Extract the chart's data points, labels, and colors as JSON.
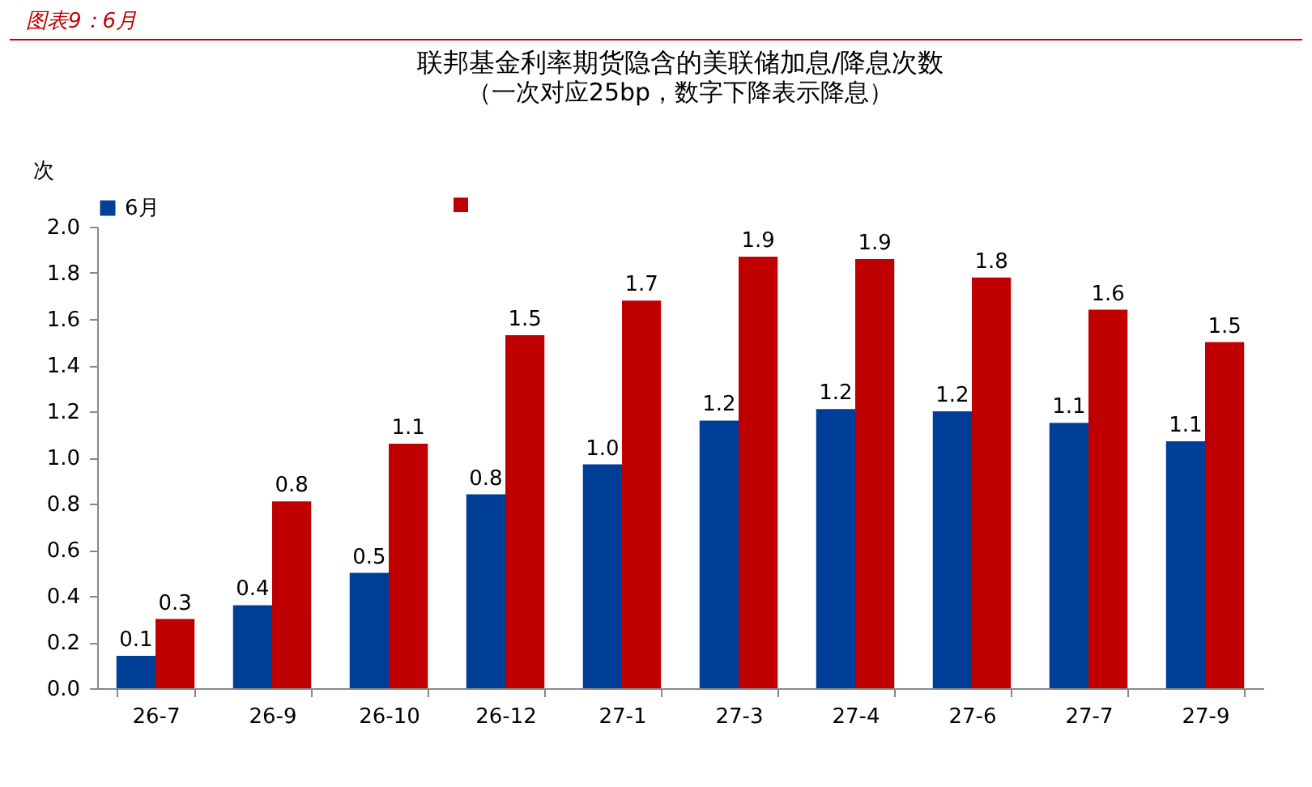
{
  "chart_data": {
    "type": "bar",
    "title": "联邦基金利率期货隐含的美联储加息/降息次数",
    "subtitle": "（一次对应25bp，数字下降表示降息）",
    "ylabel": "次",
    "annotations": [
      "图表9：6月"
    ],
    "categories": [
      "26-7",
      "26-9",
      "26-10",
      "26-12",
      "27-1",
      "27-3",
      "27-4",
      "27-6",
      "27-7",
      "27-9"
    ],
    "series": [
      {
        "name": "6月",
        "color": "#003f98",
        "values": [
          0.14,
          0.36,
          0.5,
          0.84,
          0.97,
          1.16,
          1.21,
          1.2,
          1.15,
          1.07
        ],
        "value_labels": [
          "0.1",
          "0.4",
          "0.5",
          "0.8",
          "1.0",
          "1.2",
          "1.2",
          "1.2",
          "1.1",
          "1.1"
        ]
      },
      {
        "color": "#c00000",
        "values": [
          0.3,
          0.81,
          1.06,
          1.53,
          1.68,
          1.87,
          1.86,
          1.78,
          1.64,
          1.5
        ],
        "value_labels": [
          "0.3",
          "0.8",
          "1.1",
          "1.5",
          "1.7",
          "1.9",
          "1.9",
          "1.8",
          "1.6",
          "1.5"
        ]
      }
    ],
    "ylim": [
      0,
      2
    ],
    "yticks": [
      {
        "value": 0,
        "label": "0.0"
      },
      0.2,
      0.4,
      0.6,
      0.8,
      {
        "value": 1,
        "label": "1.0"
      },
      1.2,
      1.4,
      1.6,
      1.8,
      {
        "value": 2,
        "label": "2.0"
      }
    ],
    "grid": false,
    "legend": "top"
  }
}
